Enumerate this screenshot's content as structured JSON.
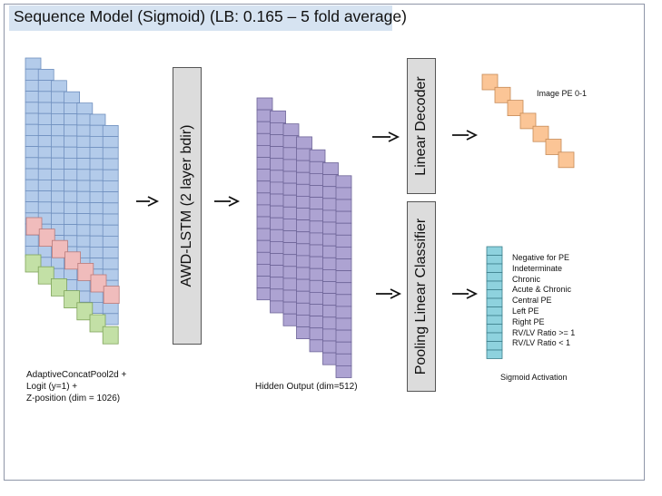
{
  "title": "Sequence Model (Sigmoid) (LB: 0.165 – 5 fold average)",
  "input_caption": [
    "AdaptiveConcatPool2d +",
    "Logit (y=1) +",
    "Z-position (dim = 1026)"
  ],
  "lstm_label": "AWD-LSTM (2 layer bdir)",
  "hidden_caption": "Hidden Output (dim=512)",
  "decoder_label": "Linear Decoder",
  "classifier_label": "Pooling Linear Classifier",
  "image_pe_label": "Image PE 0-1",
  "sigmoid_label": "Sigmoid Activation",
  "outputs": [
    "Negative for PE",
    "Indeterminate",
    "Chronic",
    "Acute & Chronic",
    "Central PE",
    "Left PE",
    "Right PE",
    "RV/LV Ratio >= 1",
    "RV/LV Ratio < 1"
  ],
  "colors": {
    "title_bg": "#d6e3f1",
    "blue_cell": "#b3cbea",
    "red_cell": "#f0bcbc",
    "green_cell": "#c3e0a6",
    "purple_cell": "#ada3d2",
    "orange_cell": "#fbc596",
    "teal_cell": "#8ed2de",
    "box_fill": "#dcdcdc"
  }
}
